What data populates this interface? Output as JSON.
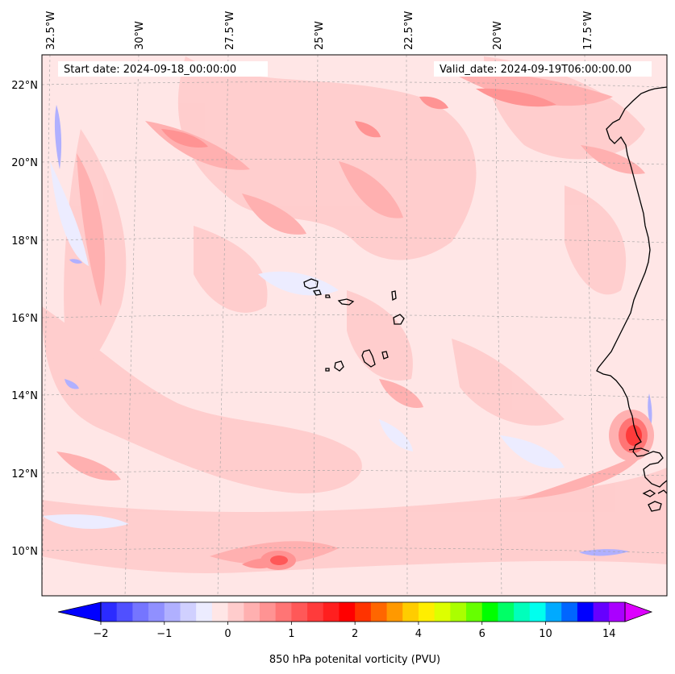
{
  "map": {
    "start_label": "Start date: 2024-09-18_00:00:00",
    "valid_label": "Valid_date: 2024-09-19T06:00:00.00",
    "longitudes": [
      "32.5°W",
      "30°W",
      "27.5°W",
      "25°W",
      "22.5°W",
      "20°W",
      "17.5°W"
    ],
    "latitudes": [
      "22°N",
      "20°N",
      "18°N",
      "16°N",
      "14°N",
      "12°N",
      "10°N"
    ],
    "colors": {
      "land_outline": "#000000",
      "background": "#ffe6e6"
    }
  },
  "colorbar": {
    "title": "850 hPa potenital vorticity (PVU)",
    "tick_labels": [
      "−2",
      "−1",
      "0",
      "1",
      "2",
      "4",
      "6",
      "10",
      "14"
    ],
    "colors": [
      "#0000ff",
      "#2b2bff",
      "#5050ff",
      "#7575ff",
      "#9090ff",
      "#b0b0ff",
      "#d0d0ff",
      "#ececff",
      "#ffe6e6",
      "#ffcccc",
      "#ffb0b0",
      "#ff9393",
      "#ff7575",
      "#ff5858",
      "#ff3b3b",
      "#ff1f1f",
      "#ff0000",
      "#ff3300",
      "#ff6600",
      "#ff9900",
      "#ffcc00",
      "#ffee00",
      "#ddff00",
      "#aaff00",
      "#66ff00",
      "#00ff00",
      "#00ff66",
      "#00ffbb",
      "#00ffee",
      "#00aaff",
      "#0066ff",
      "#0000ff",
      "#6600ff",
      "#aa00ff",
      "#dd00ff"
    ]
  }
}
